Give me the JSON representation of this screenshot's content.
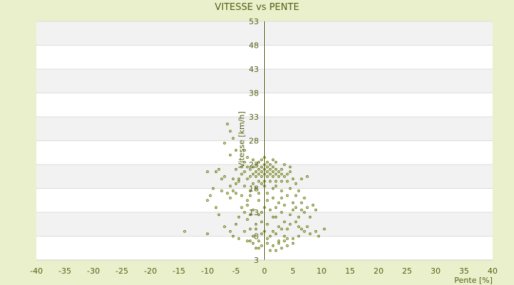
{
  "chart_data": {
    "type": "scatter",
    "title": "VITESSE vs PENTE",
    "xlabel": "Pente [%]",
    "ylabel": "Vitesse [km/h]",
    "xlim": [
      -40,
      40
    ],
    "ylim": [
      3,
      53
    ],
    "x_ticks": [
      "-40",
      "-35",
      "-30",
      "-25",
      "-20",
      "-15",
      "-10",
      "-5",
      "0",
      "5",
      "10",
      "15",
      "20",
      "25",
      "30",
      "35",
      "40"
    ],
    "y_ticks": [
      "3",
      "8",
      "13",
      "18",
      "23",
      "28",
      "33",
      "38",
      "43",
      "48",
      "53"
    ],
    "grid": true,
    "legend": "none",
    "colors": {
      "background": "#eaf0cb",
      "plot": "#ffffff",
      "band": "#f2f2f2",
      "axis": "#555f16",
      "points": "#6b7a10",
      "text": "#555f16"
    },
    "points": [
      [
        -6.5,
        31.5
      ],
      [
        -6.0,
        30.0
      ],
      [
        -5.5,
        28.5
      ],
      [
        -7.0,
        27.5
      ],
      [
        -5.0,
        26.0
      ],
      [
        -6.0,
        25.0
      ],
      [
        -3.5,
        26.0
      ],
      [
        -3.0,
        24.5
      ],
      [
        -10.0,
        21.5
      ],
      [
        -8.5,
        21.5
      ],
      [
        -8.0,
        22.0
      ],
      [
        -7.5,
        20.0
      ],
      [
        -7.0,
        20.5
      ],
      [
        -9.0,
        18.0
      ],
      [
        -10.0,
        15.5
      ],
      [
        -9.5,
        16.5
      ],
      [
        -8.5,
        14.0
      ],
      [
        -8.0,
        12.5
      ],
      [
        -7.0,
        10.0
      ],
      [
        -14.0,
        9.0
      ],
      [
        -10.0,
        8.5
      ],
      [
        -6.0,
        9.0
      ],
      [
        -5.5,
        8.0
      ],
      [
        -5.0,
        10.5
      ],
      [
        -4.5,
        12.0
      ],
      [
        -6.0,
        16.0
      ],
      [
        -5.5,
        17.5
      ],
      [
        -4.5,
        19.5
      ],
      [
        -4.0,
        16.5
      ],
      [
        -3.0,
        14.5
      ],
      [
        -3.0,
        11.5
      ],
      [
        -2.5,
        9.5
      ],
      [
        -3.0,
        7.0
      ],
      [
        -4.5,
        7.5
      ],
      [
        -2.0,
        6.5
      ],
      [
        -1.5,
        5.5
      ],
      [
        -1.0,
        7.0
      ],
      [
        -0.5,
        6.0
      ],
      [
        0.5,
        6.5
      ],
      [
        1.0,
        5.0
      ],
      [
        1.5,
        6.0
      ],
      [
        2.0,
        5.0
      ],
      [
        2.5,
        6.5
      ],
      [
        3.0,
        5.5
      ],
      [
        3.5,
        7.0
      ],
      [
        4.0,
        6.0
      ],
      [
        5.0,
        7.5
      ],
      [
        6.0,
        8.0
      ],
      [
        7.0,
        9.0
      ],
      [
        8.0,
        8.5
      ],
      [
        9.0,
        9.0
      ],
      [
        10.5,
        9.5
      ],
      [
        9.5,
        8.0
      ],
      [
        7.5,
        10.0
      ],
      [
        6.5,
        9.5
      ],
      [
        8.0,
        12.0
      ],
      [
        7.0,
        13.0
      ],
      [
        9.0,
        13.5
      ],
      [
        8.5,
        14.5
      ],
      [
        7.5,
        14.0
      ],
      [
        6.5,
        15.0
      ],
      [
        7.0,
        16.0
      ],
      [
        5.5,
        16.5
      ],
      [
        6.0,
        17.5
      ],
      [
        4.5,
        18.0
      ],
      [
        5.0,
        15.0
      ],
      [
        4.5,
        12.5
      ],
      [
        3.5,
        11.0
      ],
      [
        4.0,
        9.5
      ],
      [
        2.5,
        10.0
      ],
      [
        3.0,
        13.0
      ],
      [
        2.0,
        12.0
      ],
      [
        1.5,
        9.0
      ],
      [
        0.5,
        10.5
      ],
      [
        -0.5,
        11.0
      ],
      [
        -1.5,
        9.5
      ],
      [
        -1.0,
        12.5
      ],
      [
        -2.0,
        13.5
      ],
      [
        0.0,
        14.0
      ],
      [
        1.0,
        13.5
      ],
      [
        2.5,
        15.0
      ],
      [
        1.5,
        16.0
      ],
      [
        -1.0,
        15.5
      ],
      [
        -2.5,
        16.5
      ],
      [
        0.5,
        17.0
      ],
      [
        3.0,
        17.5
      ],
      [
        -1.5,
        18.0
      ],
      [
        0.0,
        18.5
      ],
      [
        2.0,
        18.5
      ],
      [
        -3.5,
        18.5
      ],
      [
        -2.0,
        19.0
      ],
      [
        -1.0,
        19.5
      ],
      [
        0.0,
        19.5
      ],
      [
        1.0,
        19.5
      ],
      [
        2.0,
        19.5
      ],
      [
        3.0,
        19.5
      ],
      [
        4.0,
        19.5
      ],
      [
        -3.0,
        20.0
      ],
      [
        -2.5,
        20.5
      ],
      [
        -1.5,
        20.5
      ],
      [
        -0.5,
        20.5
      ],
      [
        0.5,
        20.5
      ],
      [
        1.5,
        20.5
      ],
      [
        2.5,
        20.5
      ],
      [
        3.5,
        20.5
      ],
      [
        -2.0,
        21.0
      ],
      [
        -1.0,
        21.0
      ],
      [
        0.0,
        21.0
      ],
      [
        1.0,
        21.0
      ],
      [
        2.0,
        21.0
      ],
      [
        3.0,
        21.0
      ],
      [
        -3.5,
        21.5
      ],
      [
        -1.5,
        21.5
      ],
      [
        -0.5,
        21.5
      ],
      [
        0.5,
        21.5
      ],
      [
        1.5,
        21.5
      ],
      [
        2.5,
        21.5
      ],
      [
        -2.5,
        22.0
      ],
      [
        -1.0,
        22.0
      ],
      [
        0.0,
        22.0
      ],
      [
        1.0,
        22.0
      ],
      [
        2.0,
        22.0
      ],
      [
        -2.0,
        22.5
      ],
      [
        -0.5,
        22.5
      ],
      [
        0.5,
        22.5
      ],
      [
        1.5,
        22.5
      ],
      [
        -1.5,
        23.0
      ],
      [
        0.0,
        23.0
      ],
      [
        1.0,
        23.0
      ],
      [
        -1.0,
        23.5
      ],
      [
        0.5,
        23.5
      ],
      [
        1.5,
        24.0
      ],
      [
        -0.5,
        24.0
      ],
      [
        0.0,
        24.5
      ],
      [
        -2.0,
        24.0
      ],
      [
        2.0,
        23.5
      ],
      [
        -3.0,
        22.5
      ],
      [
        3.0,
        22.0
      ],
      [
        4.0,
        21.0
      ],
      [
        5.0,
        20.0
      ],
      [
        6.5,
        20.0
      ],
      [
        7.5,
        20.5
      ],
      [
        5.5,
        19.0
      ],
      [
        4.5,
        21.5
      ],
      [
        -4.0,
        21.0
      ],
      [
        -4.5,
        20.0
      ],
      [
        -5.0,
        19.0
      ],
      [
        -5.5,
        20.0
      ],
      [
        -6.0,
        18.5
      ],
      [
        -4.0,
        22.5
      ],
      [
        -5.0,
        22.0
      ],
      [
        -3.5,
        23.5
      ],
      [
        3.5,
        23.0
      ],
      [
        4.5,
        22.5
      ],
      [
        -0.5,
        19.0
      ],
      [
        1.5,
        18.0
      ],
      [
        -1.0,
        17.0
      ],
      [
        0.5,
        15.5
      ],
      [
        -0.5,
        13.0
      ],
      [
        1.5,
        12.0
      ],
      [
        -1.5,
        10.5
      ],
      [
        0.0,
        9.0
      ],
      [
        1.0,
        8.0
      ],
      [
        -0.5,
        8.5
      ],
      [
        2.0,
        8.5
      ],
      [
        3.0,
        9.5
      ],
      [
        -2.0,
        8.0
      ],
      [
        -3.5,
        9.0
      ],
      [
        4.5,
        10.5
      ],
      [
        5.5,
        11.0
      ],
      [
        6.0,
        12.0
      ],
      [
        5.0,
        13.5
      ],
      [
        3.5,
        14.5
      ],
      [
        2.0,
        14.0
      ],
      [
        -2.5,
        12.5
      ],
      [
        -3.5,
        13.0
      ],
      [
        6.0,
        10.0
      ],
      [
        5.0,
        6.5
      ],
      [
        3.5,
        8.0
      ],
      [
        -1.0,
        5.5
      ],
      [
        0.5,
        7.5
      ],
      [
        -2.5,
        7.0
      ],
      [
        2.5,
        7.0
      ],
      [
        4.0,
        7.5
      ],
      [
        -3.0,
        15.5
      ],
      [
        -4.0,
        14.0
      ],
      [
        4.0,
        16.5
      ],
      [
        3.0,
        16.0
      ],
      [
        5.5,
        14.0
      ],
      [
        6.5,
        13.5
      ],
      [
        -5.0,
        17.0
      ],
      [
        -6.5,
        17.0
      ],
      [
        -7.5,
        17.5
      ],
      [
        -2.5,
        17.5
      ]
    ]
  }
}
